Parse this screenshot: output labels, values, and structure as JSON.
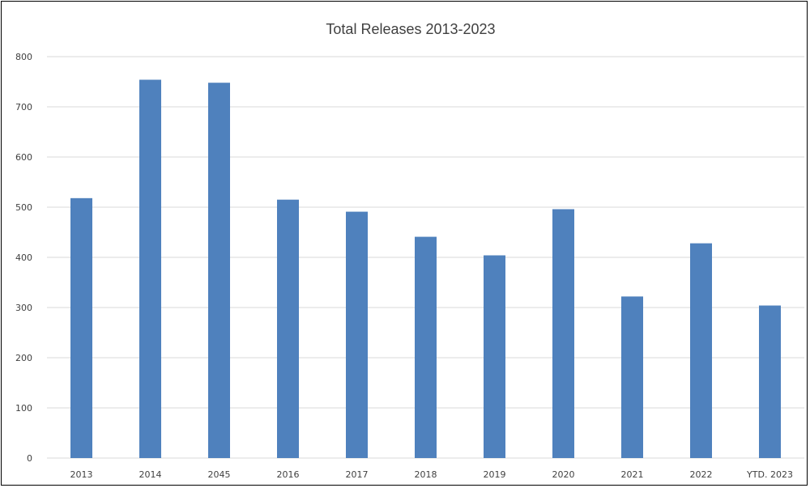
{
  "chart_data": {
    "type": "bar",
    "title": "Total Releases 2013-2023",
    "xlabel": "",
    "ylabel": "",
    "categories": [
      "2013",
      "2014",
      "2045",
      "2016",
      "2017",
      "2018",
      "2019",
      "2020",
      "2021",
      "2022",
      "YTD. 2023"
    ],
    "values": [
      518,
      754,
      748,
      515,
      491,
      441,
      404,
      496,
      322,
      428,
      304
    ],
    "ylim": [
      0,
      800
    ],
    "yticks": [
      "0",
      "100",
      "200",
      "300",
      "400",
      "500",
      "600",
      "700",
      "800"
    ],
    "grid": true,
    "legend": "none",
    "bar_color": "#4f81bd",
    "grid_color": "#d9d9d9"
  }
}
